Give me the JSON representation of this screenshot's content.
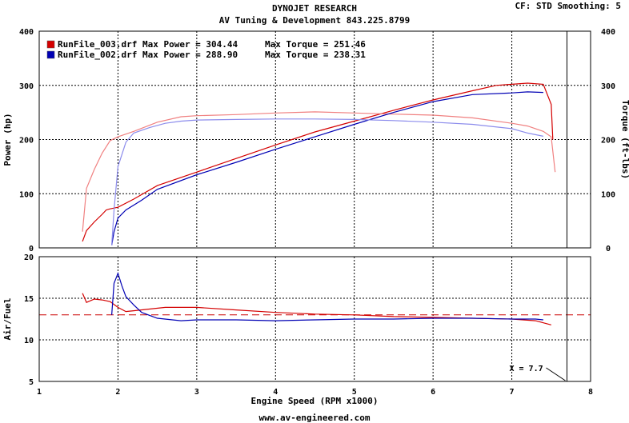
{
  "header": {
    "title": "DYNOJET RESEARCH",
    "subtitle": "AV Tuning & Development 843.225.8799",
    "settings": "CF: STD  Smoothing: 5"
  },
  "footer": {
    "url": "www.av-engineered.com"
  },
  "colors": {
    "run_003": "#d40000",
    "run_003_torque": "#f08080",
    "run_002": "#0000b4",
    "run_002_torque": "#8c8cec",
    "target_line": "#cc0000"
  },
  "chart_data": [
    {
      "type": "line",
      "name": "power-torque",
      "xlabel": "Engine Speed (RPM x1000)",
      "ylabel": "Power (hp)",
      "ylabel_right": "Torque (ft-lbs)",
      "xlim": [
        1,
        8
      ],
      "ylim": [
        0,
        400
      ],
      "xticks": [
        1,
        2,
        3,
        4,
        5,
        6,
        7,
        8
      ],
      "yticks": [
        0,
        100,
        200,
        300,
        400
      ],
      "grid": true,
      "legend": "top-left",
      "legend_entries": [
        {
          "label": "RunFile_003.drf Max Power = 304.44",
          "torque_label": "Max Torque = 251.46",
          "color": "#d40000"
        },
        {
          "label": "RunFile_002.drf Max Power = 288.90",
          "torque_label": "Max Torque = 238.31",
          "color": "#0000b4"
        }
      ],
      "series": [
        {
          "name": "RunFile_003.drf",
          "quantity": "power",
          "color": "#d40000",
          "x": [
            1.55,
            1.6,
            1.7,
            1.8,
            1.85,
            1.9,
            2.0,
            2.2,
            2.5,
            3.0,
            3.5,
            4.0,
            4.5,
            5.0,
            5.5,
            6.0,
            6.5,
            6.8,
            7.0,
            7.2,
            7.4,
            7.5,
            7.52
          ],
          "values": [
            12,
            32,
            48,
            62,
            70,
            72,
            75,
            90,
            115,
            140,
            165,
            190,
            214,
            234,
            254,
            273,
            290,
            300,
            302,
            304,
            302,
            265,
            200
          ]
        },
        {
          "name": "RunFile_003.drf",
          "quantity": "torque",
          "color": "#f08080",
          "x": [
            1.55,
            1.6,
            1.7,
            1.8,
            1.9,
            2.0,
            2.2,
            2.5,
            2.8,
            3.0,
            3.5,
            4.0,
            4.5,
            5.0,
            5.5,
            6.0,
            6.5,
            7.0,
            7.2,
            7.4,
            7.5,
            7.55
          ],
          "values": [
            30,
            110,
            145,
            175,
            198,
            205,
            215,
            232,
            242,
            244,
            246,
            249,
            251,
            249,
            247,
            245,
            240,
            230,
            225,
            215,
            205,
            140
          ]
        },
        {
          "name": "RunFile_002.drf",
          "quantity": "power",
          "color": "#0000b4",
          "x": [
            1.92,
            1.95,
            2.0,
            2.1,
            2.3,
            2.5,
            3.0,
            3.5,
            4.0,
            4.5,
            5.0,
            5.5,
            6.0,
            6.5,
            7.0,
            7.2,
            7.4
          ],
          "values": [
            5,
            30,
            55,
            70,
            88,
            108,
            135,
            158,
            182,
            205,
            228,
            250,
            270,
            283,
            286,
            288,
            287
          ]
        },
        {
          "name": "RunFile_002.drf",
          "quantity": "torque",
          "color": "#8c8cec",
          "x": [
            1.92,
            1.95,
            2.0,
            2.1,
            2.2,
            2.4,
            2.6,
            2.8,
            3.0,
            3.5,
            4.0,
            4.5,
            5.0,
            5.5,
            6.0,
            6.5,
            7.0,
            7.2,
            7.4
          ],
          "values": [
            5,
            70,
            150,
            195,
            212,
            222,
            230,
            234,
            236,
            237,
            238,
            238,
            237,
            235,
            232,
            228,
            220,
            212,
            206
          ]
        }
      ]
    },
    {
      "type": "line",
      "name": "air-fuel",
      "ylabel": "Air/Fuel",
      "xlim": [
        1,
        8
      ],
      "ylim": [
        5,
        20
      ],
      "xticks": [
        1,
        2,
        3,
        4,
        5,
        6,
        7,
        8
      ],
      "yticks": [
        5,
        10,
        15,
        20
      ],
      "grid": true,
      "reference_line": 13.0,
      "cursor": {
        "label": "X = 7.7",
        "x": 7.7
      },
      "series": [
        {
          "name": "RunFile_003.drf",
          "color": "#d40000",
          "x": [
            1.55,
            1.6,
            1.7,
            1.8,
            1.9,
            2.0,
            2.1,
            2.2,
            2.4,
            2.6,
            3.0,
            3.5,
            4.0,
            4.5,
            5.0,
            5.5,
            6.0,
            6.5,
            7.0,
            7.3,
            7.5
          ],
          "values": [
            15.6,
            14.5,
            14.9,
            14.8,
            14.6,
            13.9,
            13.4,
            13.5,
            13.7,
            13.9,
            13.9,
            13.6,
            13.3,
            13.1,
            13.0,
            12.8,
            12.7,
            12.6,
            12.5,
            12.3,
            11.8
          ]
        },
        {
          "name": "RunFile_002.drf",
          "color": "#0000b4",
          "x": [
            1.92,
            1.95,
            2.0,
            2.05,
            2.1,
            2.2,
            2.3,
            2.5,
            2.8,
            3.0,
            3.5,
            4.0,
            4.5,
            5.0,
            5.5,
            6.0,
            6.5,
            7.0,
            7.3,
            7.4
          ],
          "values": [
            13.0,
            16.8,
            18.0,
            16.5,
            15.2,
            14.2,
            13.3,
            12.6,
            12.3,
            12.4,
            12.4,
            12.3,
            12.4,
            12.5,
            12.5,
            12.6,
            12.6,
            12.5,
            12.5,
            12.4
          ]
        }
      ]
    }
  ]
}
